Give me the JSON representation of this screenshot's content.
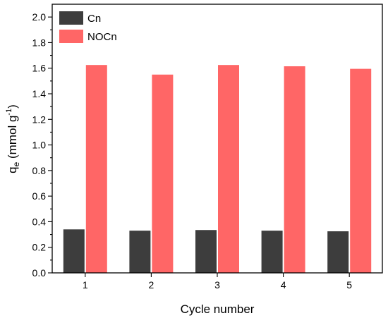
{
  "chart_data": {
    "type": "bar",
    "categories": [
      "1",
      "2",
      "3",
      "4",
      "5"
    ],
    "series": [
      {
        "name": "Cn",
        "values": [
          0.34,
          0.33,
          0.335,
          0.33,
          0.325
        ],
        "color": "#3d3d3d"
      },
      {
        "name": "NOCn",
        "values": [
          1.625,
          1.55,
          1.625,
          1.615,
          1.595
        ],
        "color": "#ff6666"
      }
    ],
    "xlabel": "Cycle number",
    "ylabel": {
      "base": "q",
      "subscript": "e",
      "unit_open": " (mmol g",
      "superscript": "-1",
      "unit_close": ")"
    },
    "ylim": [
      0,
      2.1
    ],
    "yticks": [
      "0.0",
      "0.2",
      "0.4",
      "0.6",
      "0.8",
      "1.0",
      "1.2",
      "1.4",
      "1.6",
      "1.8",
      "2.0"
    ],
    "legend_position": "top-left",
    "grid": false
  }
}
